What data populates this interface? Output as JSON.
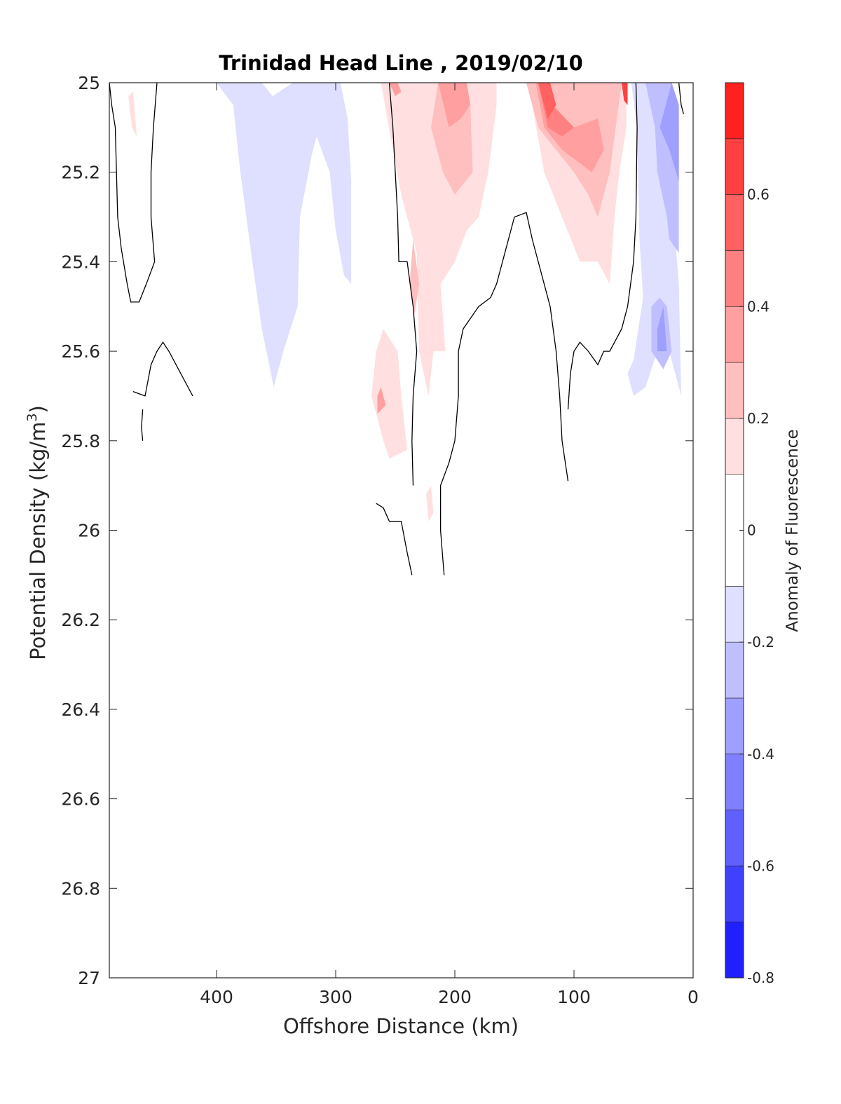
{
  "chart_data": {
    "type": "contour",
    "title": "Trinidad Head Line , 2019/02/10",
    "xlabel": "Offshore Distance (km)",
    "ylabel_main": "Potential Density (kg/m",
    "ylabel_sup": "3",
    "ylabel_close": ")",
    "colorbar_label": "Anomaly of Fluorescence",
    "xlim": [
      490,
      0
    ],
    "x_reversed": true,
    "ylim": [
      25,
      27
    ],
    "y_reversed": true,
    "xticks": [
      400,
      300,
      200,
      100,
      0
    ],
    "yticks": [
      25,
      25.2,
      25.4,
      25.6,
      25.8,
      26,
      26.2,
      26.4,
      26.6,
      26.8,
      27
    ],
    "ytick_labels": [
      "25",
      "25.2",
      "25.4",
      "25.6",
      "25.8",
      "26",
      "26.2",
      "26.4",
      "26.6",
      "26.8",
      "27"
    ],
    "colorbar_range": [
      -0.8,
      0.8
    ],
    "colorbar_ticks": [
      -0.8,
      -0.6,
      -0.4,
      -0.2,
      0,
      0.2,
      0.4,
      0.6
    ],
    "colorbar_tick_labels": [
      "-0.8",
      "-0.6",
      "-0.4",
      "-0.2",
      "0",
      "0.2",
      "0.4",
      "0.6"
    ],
    "levels": [
      -0.8,
      -0.7,
      -0.6,
      -0.5,
      -0.4,
      -0.3,
      -0.2,
      -0.1,
      0.1,
      0.2,
      0.3,
      0.4,
      0.5,
      0.6,
      0.7,
      0.8
    ],
    "level_colors": [
      "#0000ff",
      "#2020ff",
      "#4040ff",
      "#6060ff",
      "#8080ff",
      "#9f9fff",
      "#bfbfff",
      "#dfdfff",
      "#ffffff",
      "#ffdfdf",
      "#ffbfbf",
      "#ff9f9f",
      "#ff8080",
      "#ff6060",
      "#ff4040",
      "#ff2020",
      "#ff0000"
    ],
    "regions": [
      {
        "level": -0.15,
        "points": [
          [
            400,
            25
          ],
          [
            380,
            25
          ],
          [
            362,
            25
          ],
          [
            353,
            25.03
          ],
          [
            336,
            25
          ],
          [
            310,
            25
          ],
          [
            296,
            25
          ],
          [
            290,
            25.08
          ],
          [
            287,
            25.22
          ],
          [
            287,
            25.45
          ],
          [
            293,
            25.43
          ],
          [
            300,
            25.33
          ],
          [
            305,
            25.2
          ],
          [
            316,
            25.12
          ],
          [
            320,
            25.16
          ],
          [
            330,
            25.3
          ],
          [
            332,
            25.5
          ],
          [
            344,
            25.6
          ],
          [
            352,
            25.68
          ],
          [
            362,
            25.55
          ],
          [
            370,
            25.4
          ],
          [
            380,
            25.2
          ],
          [
            386,
            25.05
          ]
        ]
      },
      {
        "level": -0.15,
        "points": [
          [
            52,
            25
          ],
          [
            47,
            25.1
          ],
          [
            45,
            25.35
          ],
          [
            42,
            25.48
          ],
          [
            50,
            25.62
          ],
          [
            55,
            25.65
          ],
          [
            50,
            25.7
          ],
          [
            40,
            25.68
          ],
          [
            30,
            25.6
          ],
          [
            20,
            25.6
          ],
          [
            10,
            25.7
          ],
          [
            12,
            25.45
          ],
          [
            15,
            25.35
          ],
          [
            12,
            25.2
          ],
          [
            12,
            25.05
          ],
          [
            18,
            25
          ]
        ]
      },
      {
        "level": -0.25,
        "points": [
          [
            40,
            25
          ],
          [
            32,
            25.1
          ],
          [
            30,
            25.2
          ],
          [
            22,
            25.3
          ],
          [
            20,
            25.35
          ],
          [
            12,
            25.38
          ],
          [
            12,
            25.1
          ],
          [
            18,
            25
          ]
        ]
      },
      {
        "level": -0.25,
        "points": [
          [
            35,
            25.5
          ],
          [
            28,
            25.48
          ],
          [
            22,
            25.5
          ],
          [
            18,
            25.6
          ],
          [
            25,
            25.64
          ],
          [
            35,
            25.6
          ]
        ]
      },
      {
        "level": -0.35,
        "points": [
          [
            28,
            25.1
          ],
          [
            20,
            25.15
          ],
          [
            12,
            25.22
          ],
          [
            12,
            25.05
          ],
          [
            18,
            25
          ]
        ]
      },
      {
        "level": -0.35,
        "points": [
          [
            30,
            25.55
          ],
          [
            25,
            25.5
          ],
          [
            22,
            25.6
          ],
          [
            30,
            25.6
          ]
        ]
      },
      {
        "level": 0.15,
        "points": [
          [
            474,
            25.03
          ],
          [
            471,
            25.1
          ],
          [
            467,
            25.12
          ],
          [
            470,
            25.02
          ]
        ]
      },
      {
        "level": 0.15,
        "points": [
          [
            262,
            25
          ],
          [
            252,
            25.15
          ],
          [
            245,
            25.25
          ],
          [
            232,
            25.38
          ],
          [
            230,
            25.6
          ],
          [
            222,
            25.7
          ],
          [
            218,
            25.6
          ],
          [
            208,
            25.6
          ],
          [
            212,
            25.45
          ],
          [
            200,
            25.4
          ],
          [
            190,
            25.33
          ],
          [
            180,
            25.3
          ],
          [
            172,
            25.2
          ],
          [
            165,
            25.05
          ],
          [
            165,
            25
          ],
          [
            140,
            25
          ],
          [
            135,
            25.05
          ],
          [
            125,
            25.2
          ],
          [
            110,
            25.3
          ],
          [
            95,
            25.4
          ],
          [
            80,
            25.4
          ],
          [
            70,
            25.45
          ],
          [
            66,
            25.3
          ],
          [
            62,
            25.2
          ],
          [
            56,
            25.1
          ],
          [
            56,
            25
          ]
        ]
      },
      {
        "level": 0.15,
        "points": [
          [
            260,
            25.55
          ],
          [
            266,
            25.6
          ],
          [
            270,
            25.7
          ],
          [
            260,
            25.8
          ],
          [
            255,
            25.84
          ],
          [
            240,
            25.82
          ],
          [
            245,
            25.7
          ],
          [
            248,
            25.6
          ]
        ]
      },
      {
        "level": 0.15,
        "points": [
          [
            220,
            25.9
          ],
          [
            218,
            25.96
          ],
          [
            222,
            25.98
          ],
          [
            224,
            25.92
          ]
        ]
      },
      {
        "level": 0.25,
        "points": [
          [
            214,
            25
          ],
          [
            205,
            25.1
          ],
          [
            195,
            25.08
          ],
          [
            187,
            25.05
          ],
          [
            185,
            25.2
          ],
          [
            200,
            25.25
          ],
          [
            210,
            25.2
          ],
          [
            220,
            25.1
          ]
        ]
      },
      {
        "level": 0.25,
        "points": [
          [
            140,
            25
          ],
          [
            130,
            25.1
          ],
          [
            115,
            25.15
          ],
          [
            100,
            25.2
          ],
          [
            88,
            25.25
          ],
          [
            80,
            25.3
          ],
          [
            70,
            25.2
          ],
          [
            65,
            25.1
          ],
          [
            60,
            25
          ]
        ]
      },
      {
        "level": 0.25,
        "points": [
          [
            235,
            25.35
          ],
          [
            230,
            25.45
          ],
          [
            234,
            25.52
          ],
          [
            238,
            25.45
          ]
        ]
      },
      {
        "level": 0.35,
        "points": [
          [
            190,
            25
          ],
          [
            187,
            25.05
          ],
          [
            195,
            25.08
          ],
          [
            205,
            25.1
          ],
          [
            214,
            25
          ]
        ]
      },
      {
        "level": 0.35,
        "points": [
          [
            132,
            25
          ],
          [
            125,
            25.1
          ],
          [
            110,
            25.15
          ],
          [
            95,
            25.18
          ],
          [
            85,
            25.2
          ],
          [
            75,
            25.15
          ],
          [
            80,
            25.08
          ],
          [
            100,
            25.1
          ],
          [
            118,
            25.1
          ],
          [
            125,
            25
          ]
        ]
      },
      {
        "level": 0.35,
        "points": [
          [
            262,
            25.68
          ],
          [
            258,
            25.72
          ],
          [
            265,
            25.74
          ],
          [
            265,
            25.7
          ]
        ]
      },
      {
        "level": 0.35,
        "points": [
          [
            255,
            25
          ],
          [
            250,
            25.03
          ],
          [
            245,
            25.02
          ],
          [
            248,
            25
          ]
        ]
      },
      {
        "level": 0.45,
        "points": [
          [
            130,
            25
          ],
          [
            122,
            25.1
          ],
          [
            110,
            25.12
          ],
          [
            100,
            25.1
          ],
          [
            118,
            25.05
          ],
          [
            125,
            25
          ]
        ]
      },
      {
        "level": 0.55,
        "points": [
          [
            130,
            25
          ],
          [
            122,
            25.08
          ],
          [
            115,
            25.05
          ],
          [
            120,
            25
          ]
        ]
      },
      {
        "level": 0.65,
        "points": [
          [
            60,
            25
          ],
          [
            58,
            25.04
          ],
          [
            55,
            25.05
          ],
          [
            55,
            25
          ]
        ]
      }
    ],
    "zero_contours": [
      [
        [
          490,
          25
        ],
        [
          488,
          25.05
        ],
        [
          485,
          25.1
        ],
        [
          484,
          25.2
        ],
        [
          483,
          25.3
        ],
        [
          480,
          25.37
        ],
        [
          475,
          25.45
        ],
        [
          472,
          25.49
        ],
        [
          465,
          25.49
        ],
        [
          459,
          25.45
        ],
        [
          452,
          25.4
        ],
        [
          455,
          25.3
        ],
        [
          455,
          25.2
        ],
        [
          453,
          25.1
        ],
        [
          450,
          25
        ]
      ],
      [
        [
          470,
          25.69
        ],
        [
          460,
          25.7
        ],
        [
          455,
          25.63
        ],
        [
          450,
          25.6
        ],
        [
          445,
          25.58
        ],
        [
          440,
          25.6
        ],
        [
          430,
          25.65
        ],
        [
          420,
          25.7
        ]
      ],
      [
        [
          462,
          25.73
        ],
        [
          463,
          25.77
        ],
        [
          462,
          25.8
        ]
      ],
      [
        [
          255,
          25
        ],
        [
          252,
          25.1
        ],
        [
          250,
          25.2
        ],
        [
          248,
          25.3
        ],
        [
          247,
          25.4
        ],
        [
          240,
          25.4
        ],
        [
          235,
          25.5
        ],
        [
          232,
          25.6
        ],
        [
          235,
          25.7
        ],
        [
          236,
          25.8
        ],
        [
          235,
          25.9
        ]
      ],
      [
        [
          266,
          25.94
        ],
        [
          260,
          25.95
        ],
        [
          255,
          25.98
        ],
        [
          245,
          25.98
        ],
        [
          240,
          26.05
        ],
        [
          236,
          26.1
        ]
      ],
      [
        [
          209,
          26.1
        ],
        [
          212,
          26
        ],
        [
          212,
          25.9
        ],
        [
          205,
          25.85
        ],
        [
          200,
          25.8
        ],
        [
          197,
          25.7
        ],
        [
          197,
          25.6
        ],
        [
          193,
          25.55
        ],
        [
          180,
          25.5
        ],
        [
          170,
          25.48
        ],
        [
          165,
          25.45
        ],
        [
          160,
          25.4
        ],
        [
          150,
          25.3
        ],
        [
          140,
          25.29
        ],
        [
          135,
          25.35
        ],
        [
          130,
          25.4
        ],
        [
          120,
          25.5
        ],
        [
          115,
          25.6
        ],
        [
          112,
          25.7
        ],
        [
          110,
          25.8
        ],
        [
          105,
          25.89
        ]
      ],
      [
        [
          105,
          25.73
        ],
        [
          103,
          25.65
        ],
        [
          100,
          25.6
        ],
        [
          95,
          25.58
        ],
        [
          88,
          25.6
        ],
        [
          80,
          25.63
        ],
        [
          75,
          25.6
        ],
        [
          70,
          25.6
        ],
        [
          60,
          25.55
        ],
        [
          55,
          25.5
        ],
        [
          50,
          25.4
        ],
        [
          48,
          25.3
        ],
        [
          47,
          25.1
        ],
        [
          48,
          25
        ]
      ],
      [
        [
          12,
          25
        ],
        [
          10,
          25.05
        ],
        [
          8,
          25.07
        ]
      ]
    ]
  }
}
